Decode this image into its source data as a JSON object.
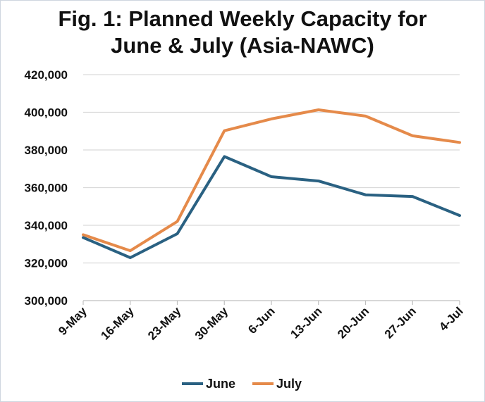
{
  "chart_data": {
    "type": "line",
    "title_line1": "Fig. 1: Planned Weekly Capacity for",
    "title_line2": "June & July (Asia-NAWC)",
    "categories": [
      "9-May",
      "16-May",
      "23-May",
      "30-May",
      "6-Jun",
      "13-Jun",
      "20-Jun",
      "27-Jun",
      "4-Jul"
    ],
    "series": [
      {
        "name": "June",
        "color": "#2a6182",
        "values": [
          333500,
          322800,
          335500,
          376500,
          365800,
          363500,
          356200,
          355300,
          345200
        ]
      },
      {
        "name": "July",
        "color": "#e58a4a",
        "values": [
          335000,
          326500,
          342000,
          390200,
          396500,
          401300,
          398000,
          387500,
          384000
        ]
      }
    ],
    "ylim": [
      300000,
      420000
    ],
    "yticks": [
      300000,
      320000,
      340000,
      360000,
      380000,
      400000,
      420000
    ],
    "ytick_labels": [
      "300,000",
      "320,000",
      "340,000",
      "360,000",
      "380,000",
      "400,000",
      "420,000"
    ],
    "grid": true,
    "gridline_color": "#d9d9d9",
    "legend_position": "bottom"
  }
}
